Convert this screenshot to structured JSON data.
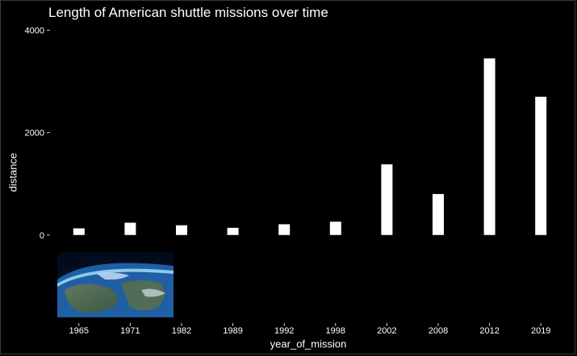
{
  "chart_data": {
    "type": "bar",
    "title": "Length of American shuttle missions over time",
    "xlabel": "year_of_mission",
    "ylabel": "distance",
    "categories": [
      "1965",
      "1971",
      "1982",
      "1989",
      "1992",
      "1998",
      "2002",
      "2008",
      "2012",
      "2019"
    ],
    "values": [
      130,
      240,
      190,
      140,
      210,
      260,
      1380,
      800,
      3450,
      2700
    ],
    "ylim": [
      -1750,
      4150
    ],
    "yticks": [
      0,
      2000,
      4000
    ],
    "grid": false,
    "bar_color": "#ffffff",
    "background": "#000000"
  },
  "decoration": {
    "image": "earth-from-space-photo"
  }
}
